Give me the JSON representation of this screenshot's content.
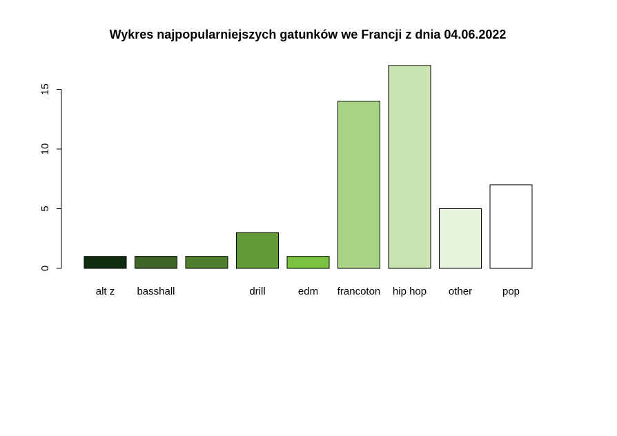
{
  "chart_data": {
    "type": "bar",
    "title": "Wykres najpopularniejszych gatunków we Francji z dnia 04.06.2022",
    "xlabel": "",
    "ylabel": "",
    "categories": [
      "alt z",
      "basshall",
      "",
      "drill",
      "edm",
      "francoton",
      "hip hop",
      "other",
      "pop"
    ],
    "values": [
      1,
      1,
      1,
      3,
      1,
      14,
      17,
      5,
      7
    ],
    "colors": [
      "#0f2e0f",
      "#3f6427",
      "#4d7f2d",
      "#629a35",
      "#7bc142",
      "#a9d384",
      "#cae3b3",
      "#e8f4de",
      "#ffffff"
    ],
    "yticks": [
      0,
      5,
      10,
      15
    ],
    "ylim": [
      0,
      17
    ],
    "grid": false,
    "legend": "none"
  }
}
